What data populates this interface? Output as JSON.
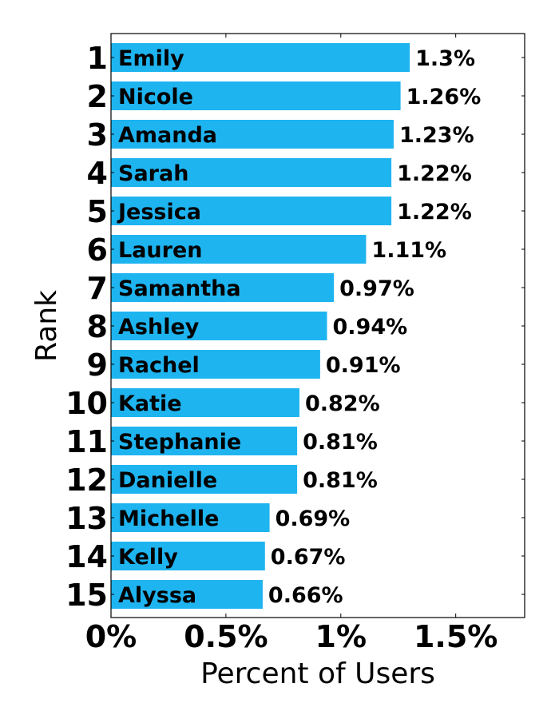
{
  "chart_data": {
    "type": "bar",
    "orientation": "horizontal",
    "xlabel": "Percent of Users",
    "ylabel": "Rank",
    "xlim": [
      0,
      1.8
    ],
    "x_ticks": [
      {
        "value": 0,
        "label": "0%"
      },
      {
        "value": 0.5,
        "label": "0.5%"
      },
      {
        "value": 1,
        "label": "1%"
      },
      {
        "value": 1.5,
        "label": "1.5%"
      }
    ],
    "bar_color": "#1eb4f0",
    "grid": false,
    "bars": [
      {
        "rank": "1",
        "name": "Emily",
        "value": 1.3,
        "label": "1.3%"
      },
      {
        "rank": "2",
        "name": "Nicole",
        "value": 1.26,
        "label": "1.26%"
      },
      {
        "rank": "3",
        "name": "Amanda",
        "value": 1.23,
        "label": "1.23%"
      },
      {
        "rank": "4",
        "name": "Sarah",
        "value": 1.22,
        "label": "1.22%"
      },
      {
        "rank": "5",
        "name": "Jessica",
        "value": 1.22,
        "label": "1.22%"
      },
      {
        "rank": "6",
        "name": "Lauren",
        "value": 1.11,
        "label": "1.11%"
      },
      {
        "rank": "7",
        "name": "Samantha",
        "value": 0.97,
        "label": "0.97%"
      },
      {
        "rank": "8",
        "name": "Ashley",
        "value": 0.94,
        "label": "0.94%"
      },
      {
        "rank": "9",
        "name": "Rachel",
        "value": 0.91,
        "label": "0.91%"
      },
      {
        "rank": "10",
        "name": "Katie",
        "value": 0.82,
        "label": "0.82%"
      },
      {
        "rank": "11",
        "name": "Stephanie",
        "value": 0.81,
        "label": "0.81%"
      },
      {
        "rank": "12",
        "name": "Danielle",
        "value": 0.81,
        "label": "0.81%"
      },
      {
        "rank": "13",
        "name": "Michelle",
        "value": 0.69,
        "label": "0.69%"
      },
      {
        "rank": "14",
        "name": "Kelly",
        "value": 0.67,
        "label": "0.67%"
      },
      {
        "rank": "15",
        "name": "Alyssa",
        "value": 0.66,
        "label": "0.66%"
      }
    ]
  }
}
